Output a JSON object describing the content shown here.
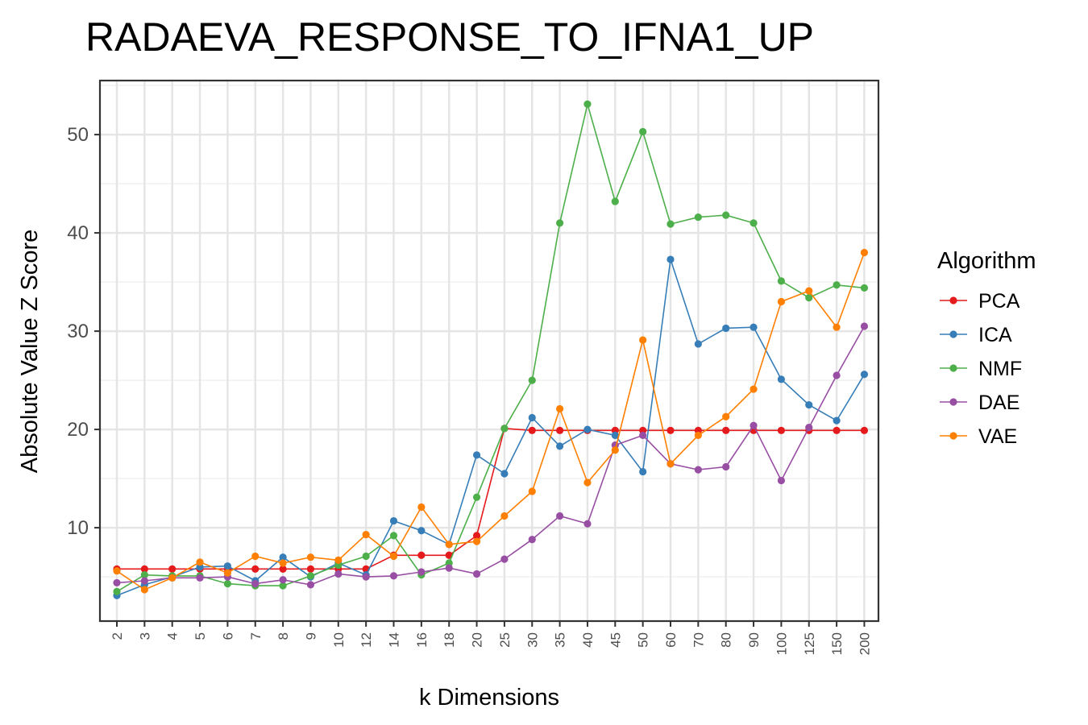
{
  "chart_data": {
    "type": "line",
    "title": "RADAEVA_RESPONSE_TO_IFNA1_UP",
    "xlabel": "k Dimensions",
    "ylabel": "Absolute Value Z Score",
    "categories": [
      "2",
      "3",
      "4",
      "5",
      "6",
      "7",
      "8",
      "9",
      "10",
      "12",
      "14",
      "16",
      "18",
      "20",
      "25",
      "30",
      "35",
      "40",
      "45",
      "50",
      "60",
      "70",
      "80",
      "90",
      "100",
      "125",
      "150",
      "200"
    ],
    "yticks": [
      10,
      20,
      30,
      40,
      50
    ],
    "ylim": [
      0.5,
      55.5
    ],
    "grid": true,
    "legend": {
      "title": "Algorithm",
      "position": "right"
    },
    "series": [
      {
        "name": "PCA",
        "color": "#e41a1c",
        "values": [
          5.8,
          5.8,
          5.8,
          5.8,
          5.8,
          5.8,
          5.8,
          5.8,
          5.8,
          5.8,
          7.2,
          7.2,
          7.2,
          9.2,
          20.1,
          19.9,
          19.9,
          19.9,
          19.9,
          19.9,
          19.9,
          19.9,
          19.9,
          19.9,
          19.9,
          19.9,
          19.9,
          19.9
        ]
      },
      {
        "name": "ICA",
        "color": "#377eb8",
        "values": [
          3.1,
          4.2,
          5.0,
          6.0,
          6.1,
          4.6,
          7.0,
          5.0,
          6.4,
          5.2,
          10.7,
          9.7,
          8.3,
          17.4,
          15.5,
          21.2,
          18.3,
          20.0,
          19.4,
          15.7,
          37.3,
          28.7,
          30.3,
          30.4,
          25.1,
          22.5,
          20.9,
          25.6
        ]
      },
      {
        "name": "NMF",
        "color": "#4daf4a",
        "values": [
          3.5,
          5.2,
          5.1,
          5.1,
          4.3,
          4.1,
          4.1,
          5.1,
          6.2,
          7.1,
          9.2,
          5.2,
          6.4,
          13.1,
          20.1,
          25.0,
          41.0,
          53.1,
          43.2,
          50.3,
          40.9,
          41.6,
          41.8,
          41.0,
          35.1,
          33.4,
          34.7,
          34.4
        ]
      },
      {
        "name": "DAE",
        "color": "#984ea3",
        "values": [
          4.4,
          4.6,
          4.9,
          4.9,
          5.0,
          4.3,
          4.7,
          4.2,
          5.3,
          5.0,
          5.1,
          5.5,
          5.9,
          5.3,
          6.8,
          8.8,
          11.2,
          10.4,
          18.4,
          19.4,
          16.5,
          15.9,
          16.2,
          20.4,
          14.8,
          20.2,
          25.5,
          30.5
        ]
      },
      {
        "name": "VAE",
        "color": "#ff7f00",
        "values": [
          5.6,
          3.7,
          4.9,
          6.5,
          5.4,
          7.1,
          6.4,
          7.0,
          6.7,
          9.3,
          7.1,
          12.1,
          8.3,
          8.6,
          11.2,
          13.7,
          22.1,
          14.6,
          17.9,
          29.1,
          16.5,
          19.4,
          21.3,
          24.1,
          33.0,
          34.1,
          30.4,
          38.0
        ]
      }
    ]
  }
}
